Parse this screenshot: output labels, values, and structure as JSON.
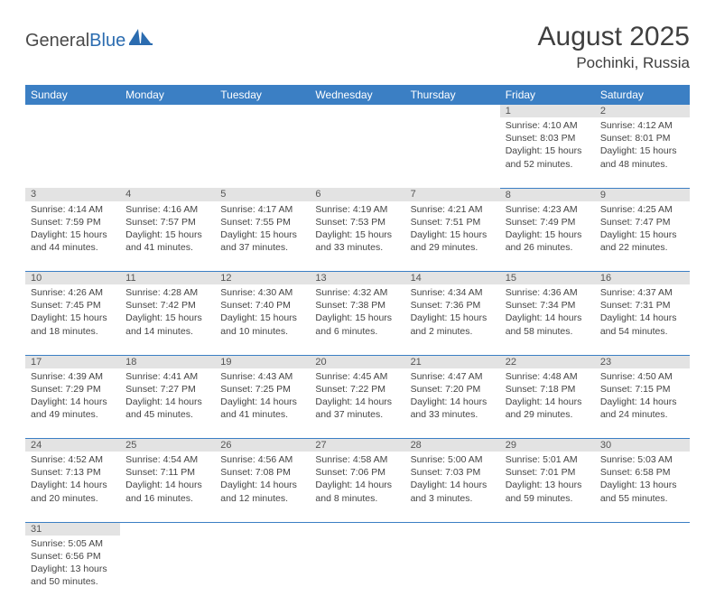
{
  "brand": {
    "general": "General",
    "blue": "Blue"
  },
  "title": "August 2025",
  "location": "Pochinki, Russia",
  "colors": {
    "header_bg": "#3b7fc4",
    "header_text": "#ffffff",
    "daynum_bg": "#e3e3e3",
    "border": "#3b7fc4",
    "text": "#444444",
    "brand_blue": "#2b6cb0"
  },
  "weekdays": [
    "Sunday",
    "Monday",
    "Tuesday",
    "Wednesday",
    "Thursday",
    "Friday",
    "Saturday"
  ],
  "weeks": [
    [
      null,
      null,
      null,
      null,
      null,
      {
        "n": "1",
        "sr": "Sunrise: 4:10 AM",
        "ss": "Sunset: 8:03 PM",
        "dl": "Daylight: 15 hours and 52 minutes."
      },
      {
        "n": "2",
        "sr": "Sunrise: 4:12 AM",
        "ss": "Sunset: 8:01 PM",
        "dl": "Daylight: 15 hours and 48 minutes."
      }
    ],
    [
      {
        "n": "3",
        "sr": "Sunrise: 4:14 AM",
        "ss": "Sunset: 7:59 PM",
        "dl": "Daylight: 15 hours and 44 minutes."
      },
      {
        "n": "4",
        "sr": "Sunrise: 4:16 AM",
        "ss": "Sunset: 7:57 PM",
        "dl": "Daylight: 15 hours and 41 minutes."
      },
      {
        "n": "5",
        "sr": "Sunrise: 4:17 AM",
        "ss": "Sunset: 7:55 PM",
        "dl": "Daylight: 15 hours and 37 minutes."
      },
      {
        "n": "6",
        "sr": "Sunrise: 4:19 AM",
        "ss": "Sunset: 7:53 PM",
        "dl": "Daylight: 15 hours and 33 minutes."
      },
      {
        "n": "7",
        "sr": "Sunrise: 4:21 AM",
        "ss": "Sunset: 7:51 PM",
        "dl": "Daylight: 15 hours and 29 minutes."
      },
      {
        "n": "8",
        "sr": "Sunrise: 4:23 AM",
        "ss": "Sunset: 7:49 PM",
        "dl": "Daylight: 15 hours and 26 minutes."
      },
      {
        "n": "9",
        "sr": "Sunrise: 4:25 AM",
        "ss": "Sunset: 7:47 PM",
        "dl": "Daylight: 15 hours and 22 minutes."
      }
    ],
    [
      {
        "n": "10",
        "sr": "Sunrise: 4:26 AM",
        "ss": "Sunset: 7:45 PM",
        "dl": "Daylight: 15 hours and 18 minutes."
      },
      {
        "n": "11",
        "sr": "Sunrise: 4:28 AM",
        "ss": "Sunset: 7:42 PM",
        "dl": "Daylight: 15 hours and 14 minutes."
      },
      {
        "n": "12",
        "sr": "Sunrise: 4:30 AM",
        "ss": "Sunset: 7:40 PM",
        "dl": "Daylight: 15 hours and 10 minutes."
      },
      {
        "n": "13",
        "sr": "Sunrise: 4:32 AM",
        "ss": "Sunset: 7:38 PM",
        "dl": "Daylight: 15 hours and 6 minutes."
      },
      {
        "n": "14",
        "sr": "Sunrise: 4:34 AM",
        "ss": "Sunset: 7:36 PM",
        "dl": "Daylight: 15 hours and 2 minutes."
      },
      {
        "n": "15",
        "sr": "Sunrise: 4:36 AM",
        "ss": "Sunset: 7:34 PM",
        "dl": "Daylight: 14 hours and 58 minutes."
      },
      {
        "n": "16",
        "sr": "Sunrise: 4:37 AM",
        "ss": "Sunset: 7:31 PM",
        "dl": "Daylight: 14 hours and 54 minutes."
      }
    ],
    [
      {
        "n": "17",
        "sr": "Sunrise: 4:39 AM",
        "ss": "Sunset: 7:29 PM",
        "dl": "Daylight: 14 hours and 49 minutes."
      },
      {
        "n": "18",
        "sr": "Sunrise: 4:41 AM",
        "ss": "Sunset: 7:27 PM",
        "dl": "Daylight: 14 hours and 45 minutes."
      },
      {
        "n": "19",
        "sr": "Sunrise: 4:43 AM",
        "ss": "Sunset: 7:25 PM",
        "dl": "Daylight: 14 hours and 41 minutes."
      },
      {
        "n": "20",
        "sr": "Sunrise: 4:45 AM",
        "ss": "Sunset: 7:22 PM",
        "dl": "Daylight: 14 hours and 37 minutes."
      },
      {
        "n": "21",
        "sr": "Sunrise: 4:47 AM",
        "ss": "Sunset: 7:20 PM",
        "dl": "Daylight: 14 hours and 33 minutes."
      },
      {
        "n": "22",
        "sr": "Sunrise: 4:48 AM",
        "ss": "Sunset: 7:18 PM",
        "dl": "Daylight: 14 hours and 29 minutes."
      },
      {
        "n": "23",
        "sr": "Sunrise: 4:50 AM",
        "ss": "Sunset: 7:15 PM",
        "dl": "Daylight: 14 hours and 24 minutes."
      }
    ],
    [
      {
        "n": "24",
        "sr": "Sunrise: 4:52 AM",
        "ss": "Sunset: 7:13 PM",
        "dl": "Daylight: 14 hours and 20 minutes."
      },
      {
        "n": "25",
        "sr": "Sunrise: 4:54 AM",
        "ss": "Sunset: 7:11 PM",
        "dl": "Daylight: 14 hours and 16 minutes."
      },
      {
        "n": "26",
        "sr": "Sunrise: 4:56 AM",
        "ss": "Sunset: 7:08 PM",
        "dl": "Daylight: 14 hours and 12 minutes."
      },
      {
        "n": "27",
        "sr": "Sunrise: 4:58 AM",
        "ss": "Sunset: 7:06 PM",
        "dl": "Daylight: 14 hours and 8 minutes."
      },
      {
        "n": "28",
        "sr": "Sunrise: 5:00 AM",
        "ss": "Sunset: 7:03 PM",
        "dl": "Daylight: 14 hours and 3 minutes."
      },
      {
        "n": "29",
        "sr": "Sunrise: 5:01 AM",
        "ss": "Sunset: 7:01 PM",
        "dl": "Daylight: 13 hours and 59 minutes."
      },
      {
        "n": "30",
        "sr": "Sunrise: 5:03 AM",
        "ss": "Sunset: 6:58 PM",
        "dl": "Daylight: 13 hours and 55 minutes."
      }
    ],
    [
      {
        "n": "31",
        "sr": "Sunrise: 5:05 AM",
        "ss": "Sunset: 6:56 PM",
        "dl": "Daylight: 13 hours and 50 minutes."
      },
      null,
      null,
      null,
      null,
      null,
      null
    ]
  ]
}
